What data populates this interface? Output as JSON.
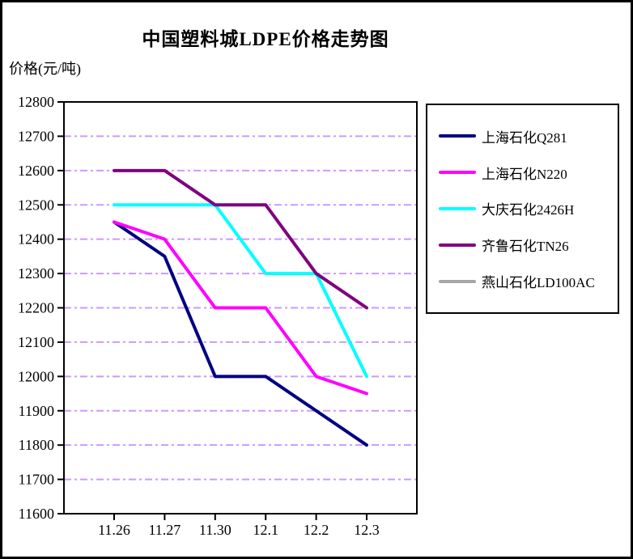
{
  "window": {
    "title": "中国塑料城LDPE价格走势图"
  },
  "chart_data": {
    "type": "line",
    "title": "中国塑料城LDPE价格走势图",
    "ylabel": "价格(元/吨)",
    "xlabel": "",
    "categories": [
      "11.26",
      "11.27",
      "11.30",
      "12.1",
      "12.2",
      "12.3"
    ],
    "series": [
      {
        "name": "上海石化Q281",
        "color": "#000080",
        "values": [
          12450,
          12350,
          12000,
          12000,
          11900,
          11800
        ]
      },
      {
        "name": "上海石化N220",
        "color": "#FF00FF",
        "values": [
          12450,
          12400,
          12200,
          12200,
          12000,
          11950
        ]
      },
      {
        "name": "大庆石化2426H",
        "color": "#00FFFF",
        "values": [
          12500,
          12500,
          12500,
          12300,
          12300,
          12000
        ]
      },
      {
        "name": "齐鲁石化TN26",
        "color": "#800080",
        "values": [
          12600,
          12600,
          12500,
          12500,
          12300,
          12200
        ]
      },
      {
        "name": "燕山石化LD100AC",
        "color": "#A6A6A6",
        "values": []
      }
    ],
    "ylim": [
      11600,
      12800
    ],
    "ytick_step": 100,
    "yticks": [
      12800,
      12700,
      12600,
      12500,
      12400,
      12300,
      12200,
      12100,
      12000,
      11900,
      11800,
      11700,
      11600
    ],
    "grid": {
      "show": true,
      "color": "#CC99FF",
      "style": "dash-dot"
    },
    "axis_color": "#000000",
    "legend_position": "right"
  }
}
